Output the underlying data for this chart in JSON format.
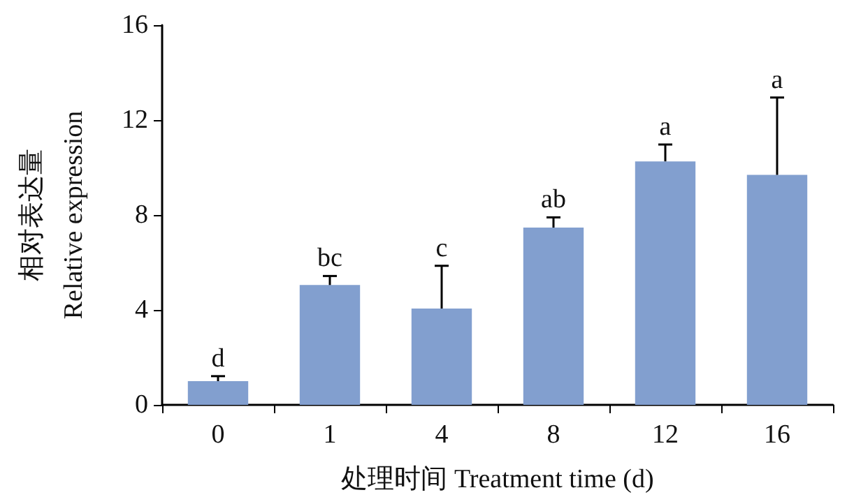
{
  "chart_data": {
    "type": "bar",
    "xlabel": "处理时间 Treatment time (d)",
    "ylabel": "相对表达量\nRelative expression",
    "categories": [
      "0",
      "1",
      "4",
      "8",
      "12",
      "16"
    ],
    "values": [
      1.0,
      5.05,
      4.06,
      7.47,
      10.26,
      9.69
    ],
    "errors": [
      [
        1.0,
        1.21
      ],
      [
        5.05,
        5.43
      ],
      [
        4.06,
        5.86
      ],
      [
        7.47,
        7.9
      ],
      [
        10.26,
        10.97
      ],
      [
        9.69,
        12.95
      ]
    ],
    "color": "#829fcf",
    "ylim": [
      0,
      16
    ],
    "yticks": [
      0,
      4,
      8,
      12,
      16
    ],
    "grid": false,
    "annotations": [
      {
        "text": "d",
        "x": "0",
        "y": 1.21
      },
      {
        "text": "bc",
        "x": "1",
        "y": 5.43
      },
      {
        "text": "c",
        "x": "4",
        "y": 5.86
      },
      {
        "text": "ab",
        "x": "8",
        "y": 7.9
      },
      {
        "text": "a",
        "x": "12",
        "y": 10.97
      },
      {
        "text": "a",
        "x": "16",
        "y": 12.95
      }
    ]
  }
}
